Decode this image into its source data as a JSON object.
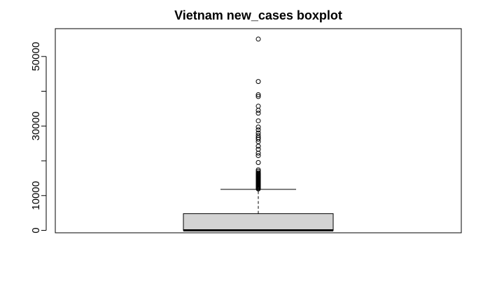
{
  "chart_data": {
    "type": "boxplot",
    "title": "Vietnam new_cases boxplot",
    "xlabel": "",
    "ylabel": "",
    "ylim": [
      -700,
      58000
    ],
    "yticks": [
      0,
      10000,
      20000,
      30000,
      40000,
      50000
    ],
    "ytick_labels": [
      "0",
      "10000",
      "",
      "30000",
      "",
      "50000"
    ],
    "grid": false,
    "box": {
      "min": 0,
      "q1": 0,
      "median": 0,
      "q3": 4800,
      "whisker_high": 11800,
      "fill": "#d3d3d3"
    },
    "outliers": [
      11900,
      12100,
      12300,
      12500,
      12700,
      12900,
      13100,
      13300,
      13500,
      13700,
      13900,
      14100,
      14300,
      14500,
      14700,
      14900,
      15100,
      15300,
      15500,
      15700,
      15900,
      16100,
      16300,
      16600,
      17000,
      17400,
      19500,
      21500,
      22200,
      23300,
      24200,
      25500,
      26200,
      26700,
      27300,
      28000,
      28900,
      29700,
      31500,
      33700,
      34500,
      35700,
      38500,
      39000,
      42800,
      55000
    ]
  }
}
